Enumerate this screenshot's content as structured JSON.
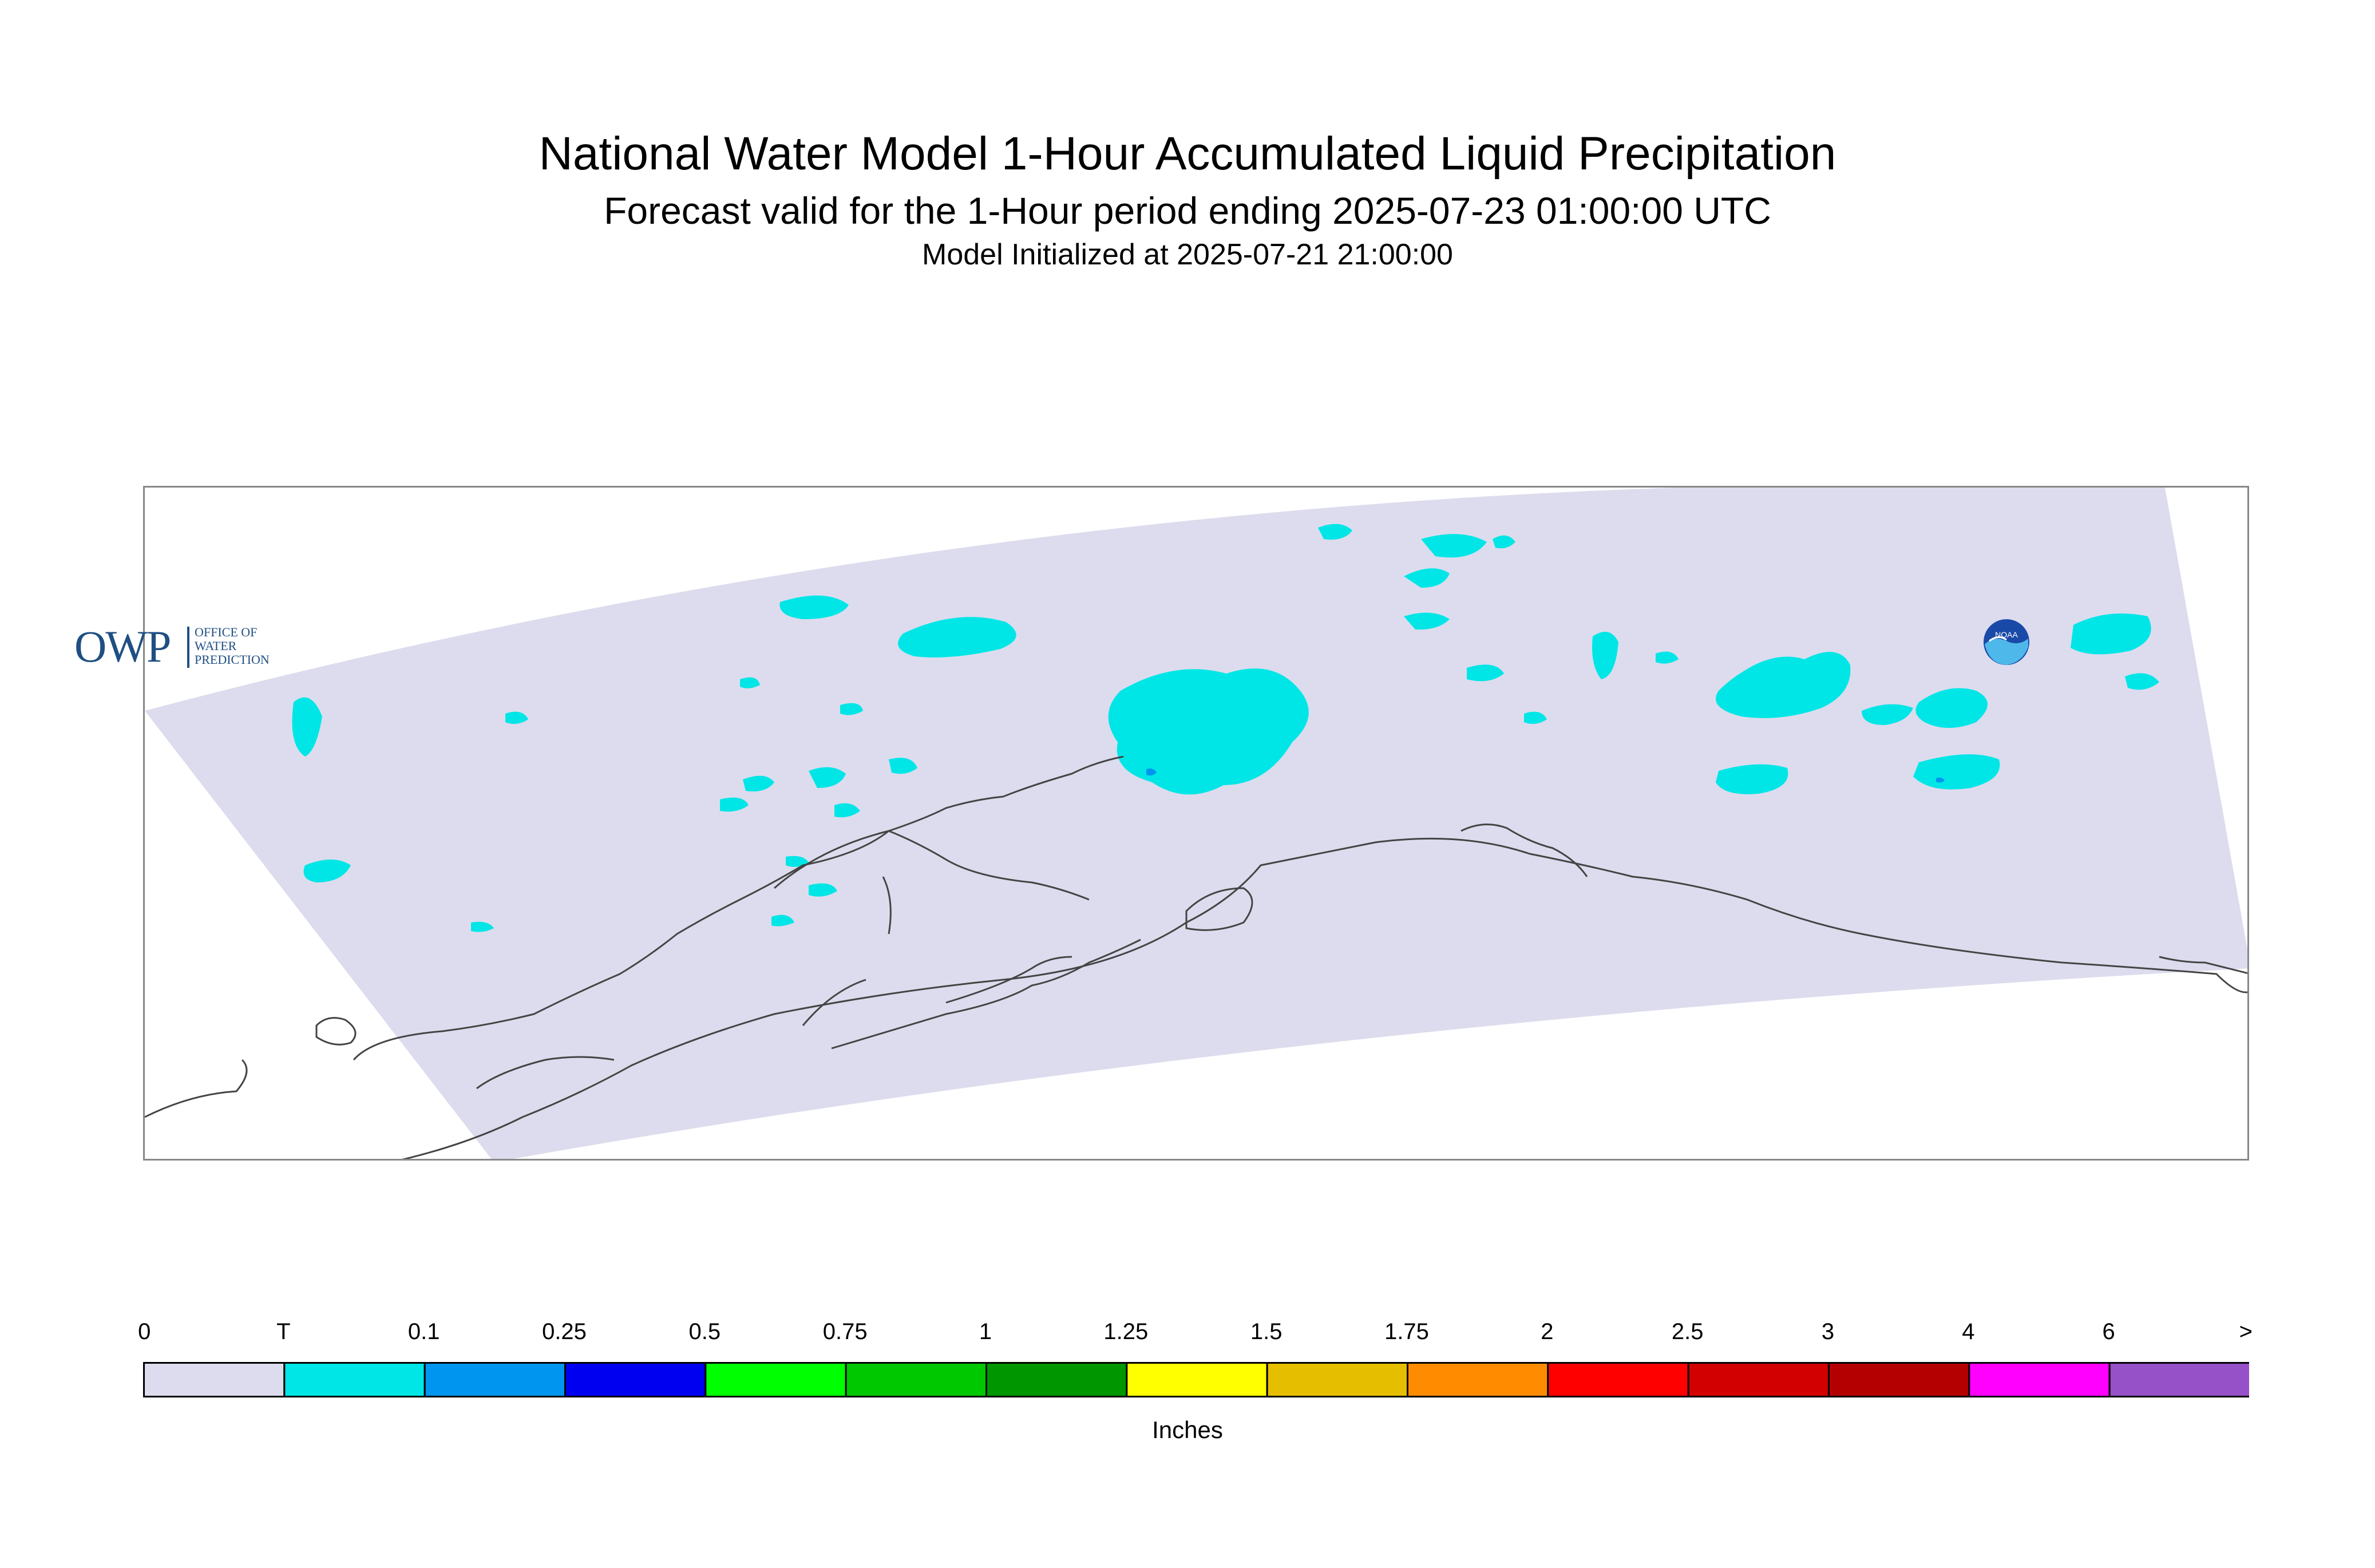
{
  "header": {
    "title": "National Water Model 1-Hour Accumulated Liquid Precipitation",
    "subtitle": "Forecast valid for the 1-Hour period ending 2025-07-23 01:00:00 UTC",
    "init": "Model Initialized at 2025-07-21 21:00:00"
  },
  "map": {
    "domain_fill": "#dcdcee",
    "precip_fill": "#00e6e6",
    "heavier_fill": "#0096f0",
    "coastline_color": "#444444"
  },
  "logos": {
    "owp_big": "OWP",
    "owp_small": [
      "OFFICE OF",
      "WATER",
      "PREDICTION"
    ],
    "noaa": "NOAA"
  },
  "legend": {
    "unit": "Inches",
    "labels": [
      "0",
      "T",
      "0.1",
      "0.25",
      "0.5",
      "0.75",
      "1",
      "1.25",
      "1.5",
      "1.75",
      "2",
      "2.5",
      "3",
      "4",
      "6",
      ">"
    ],
    "colors": [
      "#dcdcee",
      "#00e6e6",
      "#0096f0",
      "#0000f0",
      "#00ff00",
      "#00c800",
      "#009600",
      "#ffff00",
      "#e6be00",
      "#ff8c00",
      "#ff0000",
      "#d20000",
      "#b40000",
      "#ff00ff",
      "#9650c8"
    ]
  }
}
